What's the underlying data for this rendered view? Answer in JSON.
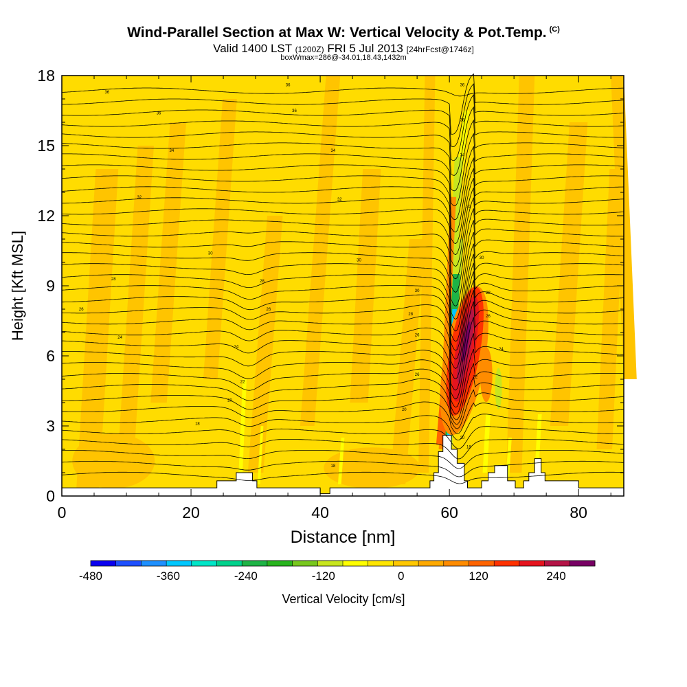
{
  "header": {
    "title": "Wind-Parallel Section at Max W: Vertical Velocity & Pot.Temp.",
    "title_mark": "(C)",
    "valid_prefix": "Valid 1400 LST",
    "valid_utc": "(1200Z)",
    "valid_date": "FRI 5 Jul 2013",
    "forecast_tag": "[24hrFcst@1746z]",
    "box_info": "boxWmax=286@-34.01,18.43,1432m"
  },
  "chart_data": {
    "type": "heatmap",
    "xlabel": "Distance [nm]",
    "ylabel": "Height [Kft MSL]",
    "xlim": [
      0,
      87
    ],
    "ylim": [
      0,
      18
    ],
    "x_ticks": [
      0,
      20,
      40,
      60,
      80
    ],
    "y_ticks": [
      0,
      3,
      6,
      9,
      12,
      15,
      18
    ],
    "field": "Vertical Velocity (colour fill)",
    "contours": "Potential temperature (black lines)",
    "contour_labels": [
      {
        "x": 7,
        "y": 17.3,
        "text": "36"
      },
      {
        "x": 35,
        "y": 17.6,
        "text": "36"
      },
      {
        "x": 15,
        "y": 16.4,
        "text": "36"
      },
      {
        "x": 36,
        "y": 16.5,
        "text": "36"
      },
      {
        "x": 17,
        "y": 14.8,
        "text": "34"
      },
      {
        "x": 42,
        "y": 14.8,
        "text": "34"
      },
      {
        "x": 12,
        "y": 12.8,
        "text": "32"
      },
      {
        "x": 43,
        "y": 12.7,
        "text": "32"
      },
      {
        "x": 23,
        "y": 10.4,
        "text": "30"
      },
      {
        "x": 46,
        "y": 10.1,
        "text": "30"
      },
      {
        "x": 8,
        "y": 9.3,
        "text": "28"
      },
      {
        "x": 31,
        "y": 9.2,
        "text": "28"
      },
      {
        "x": 3,
        "y": 8.0,
        "text": "26"
      },
      {
        "x": 32,
        "y": 8.0,
        "text": "26"
      },
      {
        "x": 55,
        "y": 8.8,
        "text": "30"
      },
      {
        "x": 54,
        "y": 7.8,
        "text": "28"
      },
      {
        "x": 9,
        "y": 6.8,
        "text": "24"
      },
      {
        "x": 55,
        "y": 6.9,
        "text": "26"
      },
      {
        "x": 27,
        "y": 6.4,
        "text": "24"
      },
      {
        "x": 55,
        "y": 5.2,
        "text": "26"
      },
      {
        "x": 28,
        "y": 4.9,
        "text": "22"
      },
      {
        "x": 26,
        "y": 4.1,
        "text": "20"
      },
      {
        "x": 53,
        "y": 3.7,
        "text": "20"
      },
      {
        "x": 21,
        "y": 3.1,
        "text": "18"
      },
      {
        "x": 42,
        "y": 1.3,
        "text": "18"
      },
      {
        "x": 62,
        "y": 17.6,
        "text": "36"
      },
      {
        "x": 62,
        "y": 16.1,
        "text": "36"
      },
      {
        "x": 62,
        "y": 14.6,
        "text": "34"
      },
      {
        "x": 63,
        "y": 12.4,
        "text": "32"
      },
      {
        "x": 65,
        "y": 10.2,
        "text": "30"
      },
      {
        "x": 66,
        "y": 8.7,
        "text": "28"
      },
      {
        "x": 66,
        "y": 7.7,
        "text": "26"
      },
      {
        "x": 68,
        "y": 6.3,
        "text": "24"
      },
      {
        "x": 64,
        "y": 5.1,
        "text": "22"
      },
      {
        "x": 62,
        "y": 2.5,
        "text": "20"
      },
      {
        "x": 63,
        "y": 2.1,
        "text": "18"
      }
    ],
    "colorbar": {
      "label": "Vertical Velocity [cm/s]",
      "tick_labels": [
        "-480",
        "-360",
        "-240",
        "-120",
        "0",
        "120",
        "240"
      ],
      "tick_values": [
        -480,
        -360,
        -240,
        -120,
        0,
        120,
        240
      ],
      "range": [
        -480,
        300
      ],
      "colors": [
        "#0a00f0",
        "#1e50ff",
        "#1e90ff",
        "#00c8ff",
        "#00e6c8",
        "#00d28c",
        "#1eb446",
        "#28b41e",
        "#78c81e",
        "#c8e61e",
        "#ffff00",
        "#ffe600",
        "#ffc800",
        "#ffaa00",
        "#ff8c00",
        "#ff6400",
        "#ff3200",
        "#e6141e",
        "#b41446",
        "#780064"
      ]
    }
  }
}
